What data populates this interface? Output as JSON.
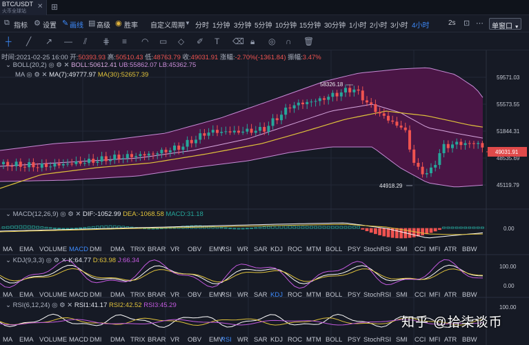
{
  "tab": {
    "title": "BTC/USDT",
    "subtitle": "火币全球站"
  },
  "toolbar": {
    "indicator": "指标",
    "settings": "设置",
    "draw": "画线",
    "advanced": "高级",
    "win_rate": "胜率",
    "custom_period": "自定义周期",
    "intervals": [
      "分时",
      "1分钟",
      "3分钟",
      "5分钟",
      "10分钟",
      "15分钟",
      "30分钟",
      "1小时",
      "2小时",
      "3小时",
      "4小时"
    ],
    "active_interval": "4小时",
    "two_s": "2s",
    "mode": "单窗口"
  },
  "ohlc": {
    "time": "时间:2021-02-25 16:00",
    "open_label": "开:",
    "open": "50393.93",
    "high_label": "高:",
    "high": "50510.43",
    "low_label": "低:",
    "low": "48763.79",
    "close_label": "收:",
    "close": "49031.91",
    "change_label": "涨幅:",
    "change": "-2.70%(-1361.84)",
    "amp_label": "振幅:",
    "amp": "3.47%"
  },
  "boll": {
    "name": "BOLL(20,2)",
    "mid": "BOLL:50612.41",
    "ub": "UB:55862.07",
    "lb": "LB:45362.75"
  },
  "ma": {
    "name": "MA",
    "ma7": "MA(7):49777.97",
    "ma30": "MA(30):52657.39"
  },
  "price_axis": {
    "ticks": [
      "59571.03",
      "55573.55",
      "51844.31",
      "48535.69",
      "45119.79"
    ],
    "current": "49031.91"
  },
  "annotations": {
    "high": "58326.18",
    "low": "44918.29"
  },
  "macd": {
    "name": "MACD(12,26,9)",
    "dif": "DIF:-1052.99",
    "dea": "DEA:-1068.58",
    "macd": "MACD:31.18",
    "axis": "0.00"
  },
  "kdj": {
    "name": "KDJ(9,3,3)",
    "k": "K:64.77",
    "d": "D:63.98",
    "j": "J:66.34",
    "axis_top": "100.00",
    "axis_bottom": "0.00"
  },
  "rsi": {
    "name": "RSI(6,12,24)",
    "r1": "RSI1:41.17",
    "r2": "RSI2:42.52",
    "r3": "RSI3:45.29",
    "axis_top": "100.00"
  },
  "indicator_tabs": [
    "MA",
    "EMA",
    "VOLUME",
    "MACD",
    "DMI",
    "DMA",
    "TRIX",
    "BRAR",
    "VR",
    "OBV",
    "EMV",
    "RSI",
    "WR",
    "SAR",
    "KDJ",
    "ROC",
    "MTM",
    "BOLL",
    "PSY",
    "StochRSI",
    "SMI",
    "CCI",
    "MFI",
    "ATR",
    "BBW"
  ],
  "watermark": "知乎 @拾柒谈币",
  "colors": {
    "up": "#26a69a",
    "down": "#ef5350",
    "band_fill": "#4a1545",
    "accent": "#3d8bfd"
  }
}
